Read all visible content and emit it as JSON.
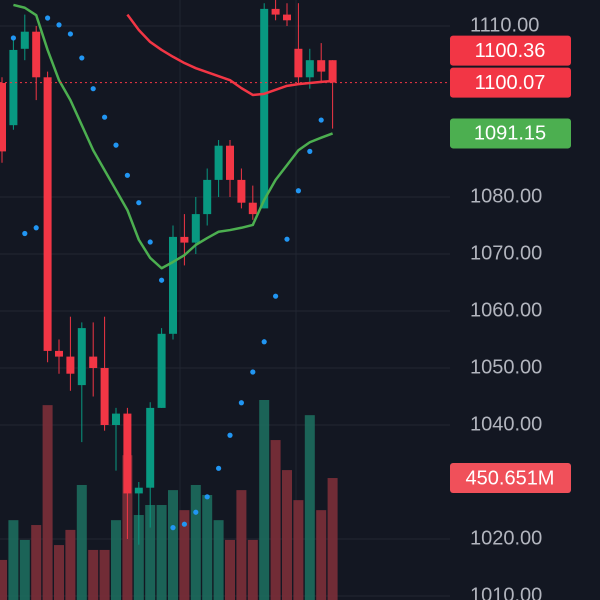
{
  "chart_data": {
    "type": "candlestick",
    "ylim": [
      1009.3,
      1114.56
    ],
    "yticks": [
      {
        "value": 1110,
        "label": "1110.00"
      },
      {
        "value": 1080,
        "label": "1080.00"
      },
      {
        "value": 1070,
        "label": "1070.00"
      },
      {
        "value": 1060,
        "label": "1060.00"
      },
      {
        "value": 1050,
        "label": "1050.00"
      },
      {
        "value": 1040,
        "label": "1040.00"
      },
      {
        "value": 1020,
        "label": "1020.00"
      },
      {
        "value": 1010,
        "label": "1010.00"
      }
    ],
    "grid": true,
    "up_color": "#089981",
    "down_color": "#f23645",
    "open": [
      1100,
      1092.6,
      1106,
      1109,
      1101,
      1053,
      1052,
      1047,
      1052,
      1050,
      1040,
      1042,
      1028,
      1029,
      1043,
      1056,
      1073,
      1072,
      1077,
      1083,
      1089,
      1083,
      1079,
      1078,
      1113,
      1112,
      1106,
      1101,
      1104,
      1104
    ],
    "high": [
      1101,
      1107.5,
      1112,
      1110,
      1102,
      1055,
      1059,
      1058,
      1058,
      1059,
      1043,
      1043,
      1030,
      1044,
      1057,
      1075,
      1077,
      1080,
      1085,
      1090,
      1090,
      1085,
      1082,
      1114,
      1115,
      1114,
      1114,
      1106,
      1107,
      1104
    ],
    "low": [
      1086,
      1091.8,
      1104,
      1097,
      1051,
      1049,
      1046,
      1037,
      1045,
      1039,
      1032,
      1020,
      1019,
      1022,
      1043,
      1055,
      1068,
      1070,
      1075,
      1080,
      1080,
      1078,
      1076,
      1078,
      1111,
      1110,
      1100,
      1099,
      1100,
      1092
    ],
    "close": [
      1088,
      1105.8,
      1109,
      1101,
      1053,
      1052,
      1049,
      1057,
      1050,
      1040,
      1042,
      1028,
      1029,
      1043,
      1056,
      1073,
      1072,
      1077,
      1083,
      1089,
      1083,
      1079,
      1077,
      1113,
      1112,
      1111,
      1101,
      1104,
      1102,
      1100.07
    ],
    "close_labels": [
      null,
      null,
      null,
      null,
      null,
      null,
      null,
      null,
      null,
      null,
      null,
      null,
      null,
      null,
      null,
      null,
      null,
      null,
      null,
      null,
      null,
      null,
      null,
      null,
      null,
      null,
      null,
      null,
      null,
      "1100.07"
    ],
    "volume": {
      "values": [
        148,
        295,
        222,
        277,
        720,
        203,
        259,
        425,
        185,
        185,
        295,
        535,
        314,
        351,
        351,
        406,
        332,
        425,
        388,
        295,
        222,
        406,
        222,
        739,
        591,
        480,
        369,
        683,
        332,
        450.651
      ],
      "value_labels": [
        null,
        null,
        null,
        null,
        null,
        null,
        null,
        null,
        null,
        null,
        null,
        null,
        null,
        null,
        null,
        null,
        null,
        null,
        null,
        null,
        null,
        null,
        null,
        null,
        null,
        null,
        null,
        null,
        null,
        "450.651M"
      ],
      "up_color": "#1d6b5d",
      "down_color": "#7c2f39"
    },
    "overlays": [
      {
        "type": "line",
        "color": "#f23645",
        "values": [
          null,
          null,
          null,
          null,
          null,
          null,
          null,
          null,
          null,
          null,
          null,
          1112,
          1109.3,
          1107.2,
          1105.8,
          1104.6,
          1103.5,
          1102.6,
          1101.9,
          1101.2,
          1100.5,
          1099.1,
          1097.9,
          1098.1,
          1098.8,
          1099.5,
          1099.8,
          1100,
          1100.2,
          1100.36
        ],
        "value_labels": [
          null,
          null,
          null,
          null,
          null,
          null,
          null,
          null,
          null,
          null,
          null,
          null,
          null,
          null,
          null,
          null,
          null,
          null,
          null,
          null,
          null,
          null,
          null,
          null,
          null,
          null,
          null,
          null,
          null,
          "1100.36"
        ]
      },
      {
        "type": "line",
        "color": "#4caf50",
        "values": [
          null,
          1113.7,
          1113.2,
          1111.9,
          1105.8,
          1100.5,
          1097,
          1092.6,
          1088.2,
          1084.7,
          1081.2,
          1077.7,
          1072.5,
          1069.3,
          1067.5,
          1068.6,
          1069.8,
          1071.6,
          1072.8,
          1073.9,
          1074.2,
          1074.6,
          1075.1,
          1079.5,
          1083,
          1085.6,
          1088.2,
          1089.6,
          1090.4,
          1091.15
        ],
        "value_labels": [
          null,
          null,
          null,
          null,
          null,
          null,
          null,
          null,
          null,
          null,
          null,
          null,
          null,
          null,
          null,
          null,
          null,
          null,
          null,
          null,
          null,
          null,
          null,
          null,
          null,
          null,
          null,
          null,
          null,
          "1091.15"
        ]
      },
      {
        "type": "scatter",
        "color": "#2196f3",
        "values": [
          null,
          1107.9,
          1073.6,
          1074.6,
          1111.4,
          1110.2,
          1108.6,
          1104.4,
          1099,
          1094,
          1089.1,
          1083.8,
          1079,
          1072.1,
          1065.4,
          1022,
          1022.6,
          1024.7,
          1027.4,
          1032.4,
          1038.2,
          1043.9,
          1049.3,
          1054.6,
          1062.6,
          1072.6,
          1081.1,
          1088,
          1093.5,
          null
        ]
      }
    ]
  }
}
